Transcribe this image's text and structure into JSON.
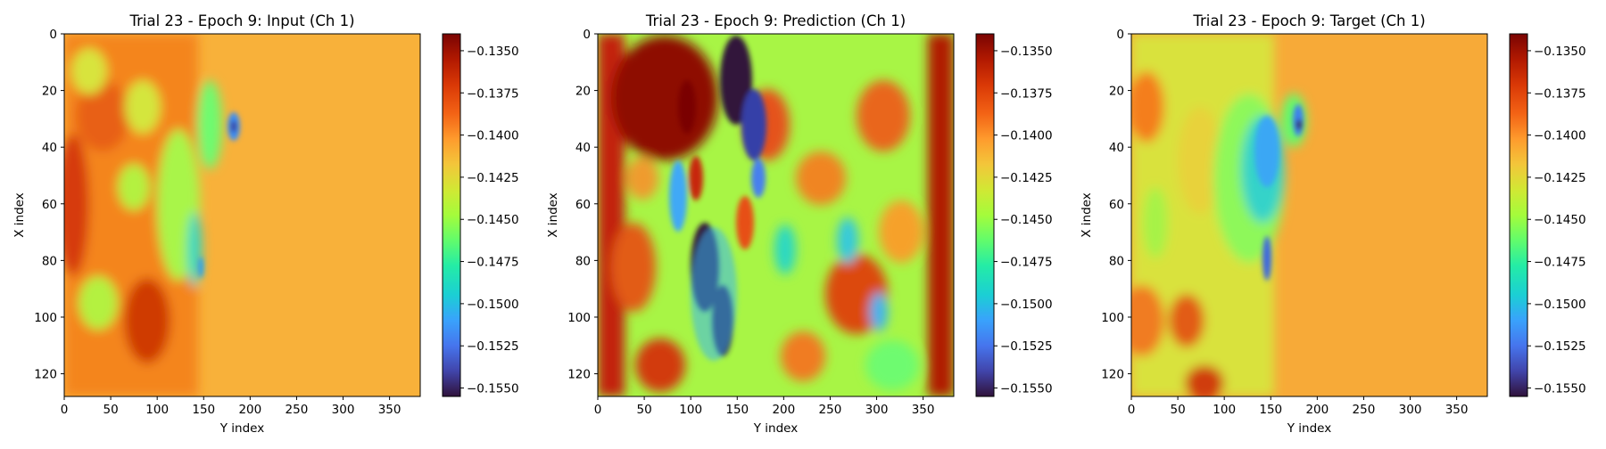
{
  "chart_data": [
    {
      "type": "heatmap",
      "title": "Trial 23 - Epoch 9: Input (Ch 1)",
      "xlabel": "Y index",
      "ylabel": "X index",
      "xlim": [
        0,
        383
      ],
      "ylim": [
        128,
        0
      ],
      "xticks": [
        "0",
        "50",
        "100",
        "150",
        "200",
        "250",
        "300",
        "350"
      ],
      "yticks": [
        "0",
        "20",
        "40",
        "60",
        "80",
        "100",
        "120"
      ],
      "colormap": "turbo",
      "colorbar": {
        "vmin": -0.1555,
        "vmax": -0.134,
        "ticks": [
          "−0.1350",
          "−0.1375",
          "−0.1400",
          "−0.1425",
          "−0.1450",
          "−0.1475",
          "−0.1500",
          "−0.1525",
          "−0.1550"
        ]
      },
      "background_value": -0.1408
    },
    {
      "type": "heatmap",
      "title": "Trial 23 - Epoch 9: Prediction (Ch 1)",
      "xlabel": "Y index",
      "ylabel": "X index",
      "xlim": [
        0,
        383
      ],
      "ylim": [
        128,
        0
      ],
      "xticks": [
        "0",
        "50",
        "100",
        "150",
        "200",
        "250",
        "300",
        "350"
      ],
      "yticks": [
        "0",
        "20",
        "40",
        "60",
        "80",
        "100",
        "120"
      ],
      "colormap": "turbo",
      "colorbar": {
        "vmin": -0.1555,
        "vmax": -0.134,
        "ticks": [
          "−0.1350",
          "−0.1375",
          "−0.1400",
          "−0.1425",
          "−0.1450",
          "−0.1475",
          "−0.1500",
          "−0.1525",
          "−0.1550"
        ]
      },
      "background_value": -0.144
    },
    {
      "type": "heatmap",
      "title": "Trial 23 - Epoch 9: Target (Ch 1)",
      "xlabel": "Y index",
      "ylabel": "X index",
      "xlim": [
        0,
        383
      ],
      "ylim": [
        128,
        0
      ],
      "xticks": [
        "0",
        "50",
        "100",
        "150",
        "200",
        "250",
        "300",
        "350"
      ],
      "yticks": [
        "0",
        "20",
        "40",
        "60",
        "80",
        "100",
        "120"
      ],
      "colormap": "turbo",
      "colorbar": {
        "vmin": -0.1555,
        "vmax": -0.134,
        "ticks": [
          "−0.1350",
          "−0.1375",
          "−0.1400",
          "−0.1425",
          "−0.1450",
          "−0.1475",
          "−0.1500",
          "−0.1525",
          "−0.1550"
        ]
      },
      "background_value": -0.1408
    }
  ]
}
